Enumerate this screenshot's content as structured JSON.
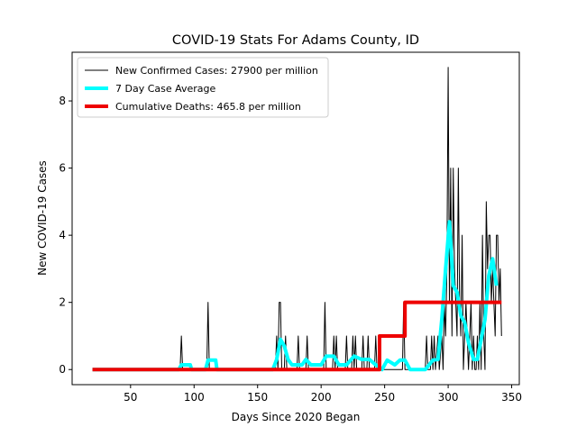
{
  "chart_data": {
    "type": "line",
    "title": "COVID-19 Stats For Adams County, ID",
    "x_label": "Days Since 2020 Began",
    "y_label": "New COVID-19 Cases",
    "xlim": [
      4,
      356
    ],
    "ylim": [
      -0.45,
      9.45
    ],
    "xticks": [
      50,
      100,
      150,
      200,
      250,
      300,
      350
    ],
    "yticks": [
      0,
      2,
      4,
      6,
      8
    ],
    "legend": "upper left",
    "series": [
      {
        "name": "New Confirmed Cases: 27900 per million",
        "color": "#000000",
        "width": 1,
        "x": [
          20,
          89,
          90,
          91,
          110,
          111,
          112,
          164,
          165,
          166,
          167,
          168,
          169,
          171,
          172,
          173,
          181,
          182,
          183,
          188,
          189,
          190,
          202,
          203,
          204,
          209,
          210,
          211,
          212,
          213,
          219,
          220,
          221,
          224,
          225,
          226,
          227,
          228,
          232,
          233,
          234,
          236,
          237,
          238,
          242,
          243,
          244,
          264,
          265,
          266,
          282,
          283,
          284,
          286,
          287,
          288,
          289,
          290,
          292,
          293,
          295,
          296,
          297,
          298,
          299,
          300,
          301,
          302,
          303,
          304,
          305,
          306,
          307,
          308,
          309,
          310,
          311,
          312,
          313,
          314,
          315,
          316,
          317,
          318,
          319,
          320,
          321,
          322,
          323,
          324,
          325,
          326,
          327,
          328,
          329,
          330,
          331,
          332,
          333,
          334,
          335,
          336,
          337,
          338,
          339,
          340,
          341,
          342
        ],
        "values": [
          0,
          0,
          1,
          0,
          0,
          2,
          0,
          0,
          1,
          0,
          2,
          2,
          0,
          0,
          1,
          0,
          0,
          1,
          0,
          0,
          1,
          0,
          0,
          2,
          0,
          0,
          1,
          0,
          1,
          0,
          0,
          1,
          0,
          0,
          1,
          0,
          1,
          0,
          0,
          1,
          0,
          0,
          1,
          0,
          0,
          1,
          0,
          0,
          2,
          0,
          0,
          1,
          0,
          0,
          1,
          0,
          1,
          0,
          1,
          0,
          1,
          0,
          2,
          1,
          3,
          9,
          2,
          6,
          1,
          6,
          3,
          2,
          1,
          6,
          2,
          1,
          4,
          0,
          1,
          2,
          1,
          0,
          1,
          2,
          0,
          1,
          0,
          0,
          1,
          0,
          2,
          0,
          4,
          1,
          0,
          5,
          3,
          4,
          4,
          2,
          3,
          2,
          1,
          4,
          4,
          2,
          3,
          1
        ]
      },
      {
        "name": "7 Day Case Average",
        "color": "#00ffff",
        "width": 4,
        "x": [
          20,
          88,
          90,
          97,
          98,
          109,
          111,
          117,
          118,
          162,
          165,
          168,
          171,
          174,
          177,
          185,
          188,
          192,
          200,
          204,
          210,
          214,
          220,
          226,
          232,
          238,
          243,
          248,
          252,
          258,
          262,
          266,
          270,
          282,
          288,
          292,
          295,
          298,
          301,
          304,
          307,
          310,
          313,
          316,
          320,
          323,
          326,
          329,
          332,
          335,
          338
        ],
        "values": [
          0,
          0,
          0.14,
          0.14,
          0,
          0,
          0.28,
          0.28,
          0,
          0,
          0.3,
          0.9,
          0.7,
          0.3,
          0.14,
          0.14,
          0.3,
          0.14,
          0.14,
          0.4,
          0.4,
          0.14,
          0.14,
          0.4,
          0.3,
          0.3,
          0.14,
          0,
          0.28,
          0.14,
          0.28,
          0.28,
          0,
          0,
          0.28,
          0.3,
          1.5,
          3,
          4.4,
          2.5,
          2.3,
          1.6,
          1.4,
          0.8,
          0.3,
          0.3,
          0.9,
          1.5,
          2.8,
          3.3,
          2.5
        ]
      },
      {
        "name": "Cumulative Deaths: 465.8 per million",
        "color": "#ee0000",
        "width": 4,
        "x": [
          20,
          246,
          246,
          266,
          266,
          342
        ],
        "values": [
          0,
          0,
          1,
          1,
          2,
          2
        ]
      }
    ]
  }
}
